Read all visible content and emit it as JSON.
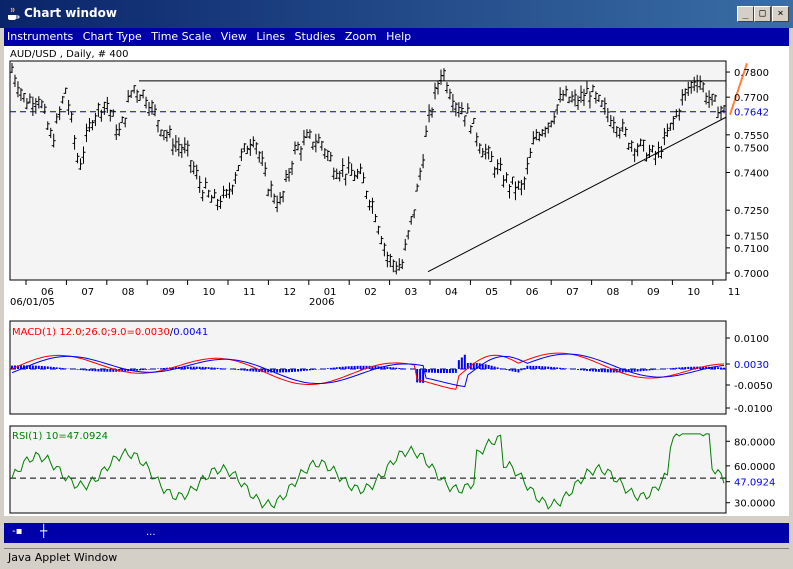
{
  "window": {
    "title": "Chart window"
  },
  "menu": [
    "Instruments",
    "Chart Type",
    "Time Scale",
    "View",
    "Lines",
    "Studies",
    "Zoom",
    "Help"
  ],
  "main_chart": {
    "header": "AUD/USD , Daily, # 400",
    "y_ticks": [
      {
        "label": "0.7800",
        "v": 0.78
      },
      {
        "label": "0.7700",
        "v": 0.77
      },
      {
        "label": "0.7550",
        "v": 0.755
      },
      {
        "label": "0.7500",
        "v": 0.75
      },
      {
        "label": "0.7400",
        "v": 0.74
      },
      {
        "label": "0.7250",
        "v": 0.725
      },
      {
        "label": "0.7150",
        "v": 0.715
      },
      {
        "label": "0.7100",
        "v": 0.71
      },
      {
        "label": "0.7000",
        "v": 0.7
      }
    ],
    "current_price": "0.7642",
    "x_months": [
      "06",
      "07",
      "08",
      "09",
      "10",
      "11",
      "12",
      "01",
      "02",
      "03",
      "04",
      "05",
      "06",
      "07",
      "08",
      "09",
      "10",
      "11"
    ],
    "date_label": "06/01/05",
    "year_label": "2006"
  },
  "macd": {
    "label_name": "MACD(1) 12.0;26.0;9.0=",
    "label_value1": "0.0030",
    "label_value2": "0.0041",
    "y_ticks": [
      "0.0100",
      "0.0030",
      "-0.0050",
      "-0.0100"
    ]
  },
  "rsi": {
    "label": "RSI(1) 10=47.0924",
    "y_ticks": [
      "80.0000",
      "60.0000",
      "47.0924",
      "30.0000"
    ]
  },
  "bottombar": {
    "dots": "..."
  },
  "status": "Java Applet Window",
  "colors": {
    "title": "#0a246a",
    "menu": "#0000a8",
    "macd": "#ff0000",
    "signal": "#0000ff",
    "rsi": "#008000",
    "trend": "#ff7f3f"
  },
  "chart_data": {
    "type": "line",
    "title": "AUD/USD , Daily, # 400",
    "xlabel": "",
    "ylabel": "",
    "ylim": [
      0.698,
      0.784
    ],
    "x_months": [
      "06",
      "07",
      "08",
      "09",
      "10",
      "11",
      "12",
      "01",
      "02",
      "03",
      "04",
      "05",
      "06",
      "07",
      "08",
      "09",
      "10",
      "11"
    ],
    "close_estimates": [
      0.781,
      0.768,
      0.77,
      0.752,
      0.773,
      0.742,
      0.762,
      0.768,
      0.755,
      0.774,
      0.77,
      0.759,
      0.752,
      0.748,
      0.735,
      0.728,
      0.73,
      0.745,
      0.755,
      0.735,
      0.727,
      0.748,
      0.753,
      0.752,
      0.742,
      0.74,
      0.738,
      0.725,
      0.705,
      0.702,
      0.727,
      0.76,
      0.781,
      0.768,
      0.762,
      0.75,
      0.742,
      0.735,
      0.733,
      0.755,
      0.76,
      0.77,
      0.768,
      0.772,
      0.765,
      0.76,
      0.752,
      0.749,
      0.746,
      0.757,
      0.77,
      0.778,
      0.768,
      0.764
    ],
    "resistance_level": 0.7765,
    "current_price": 0.7642
  }
}
